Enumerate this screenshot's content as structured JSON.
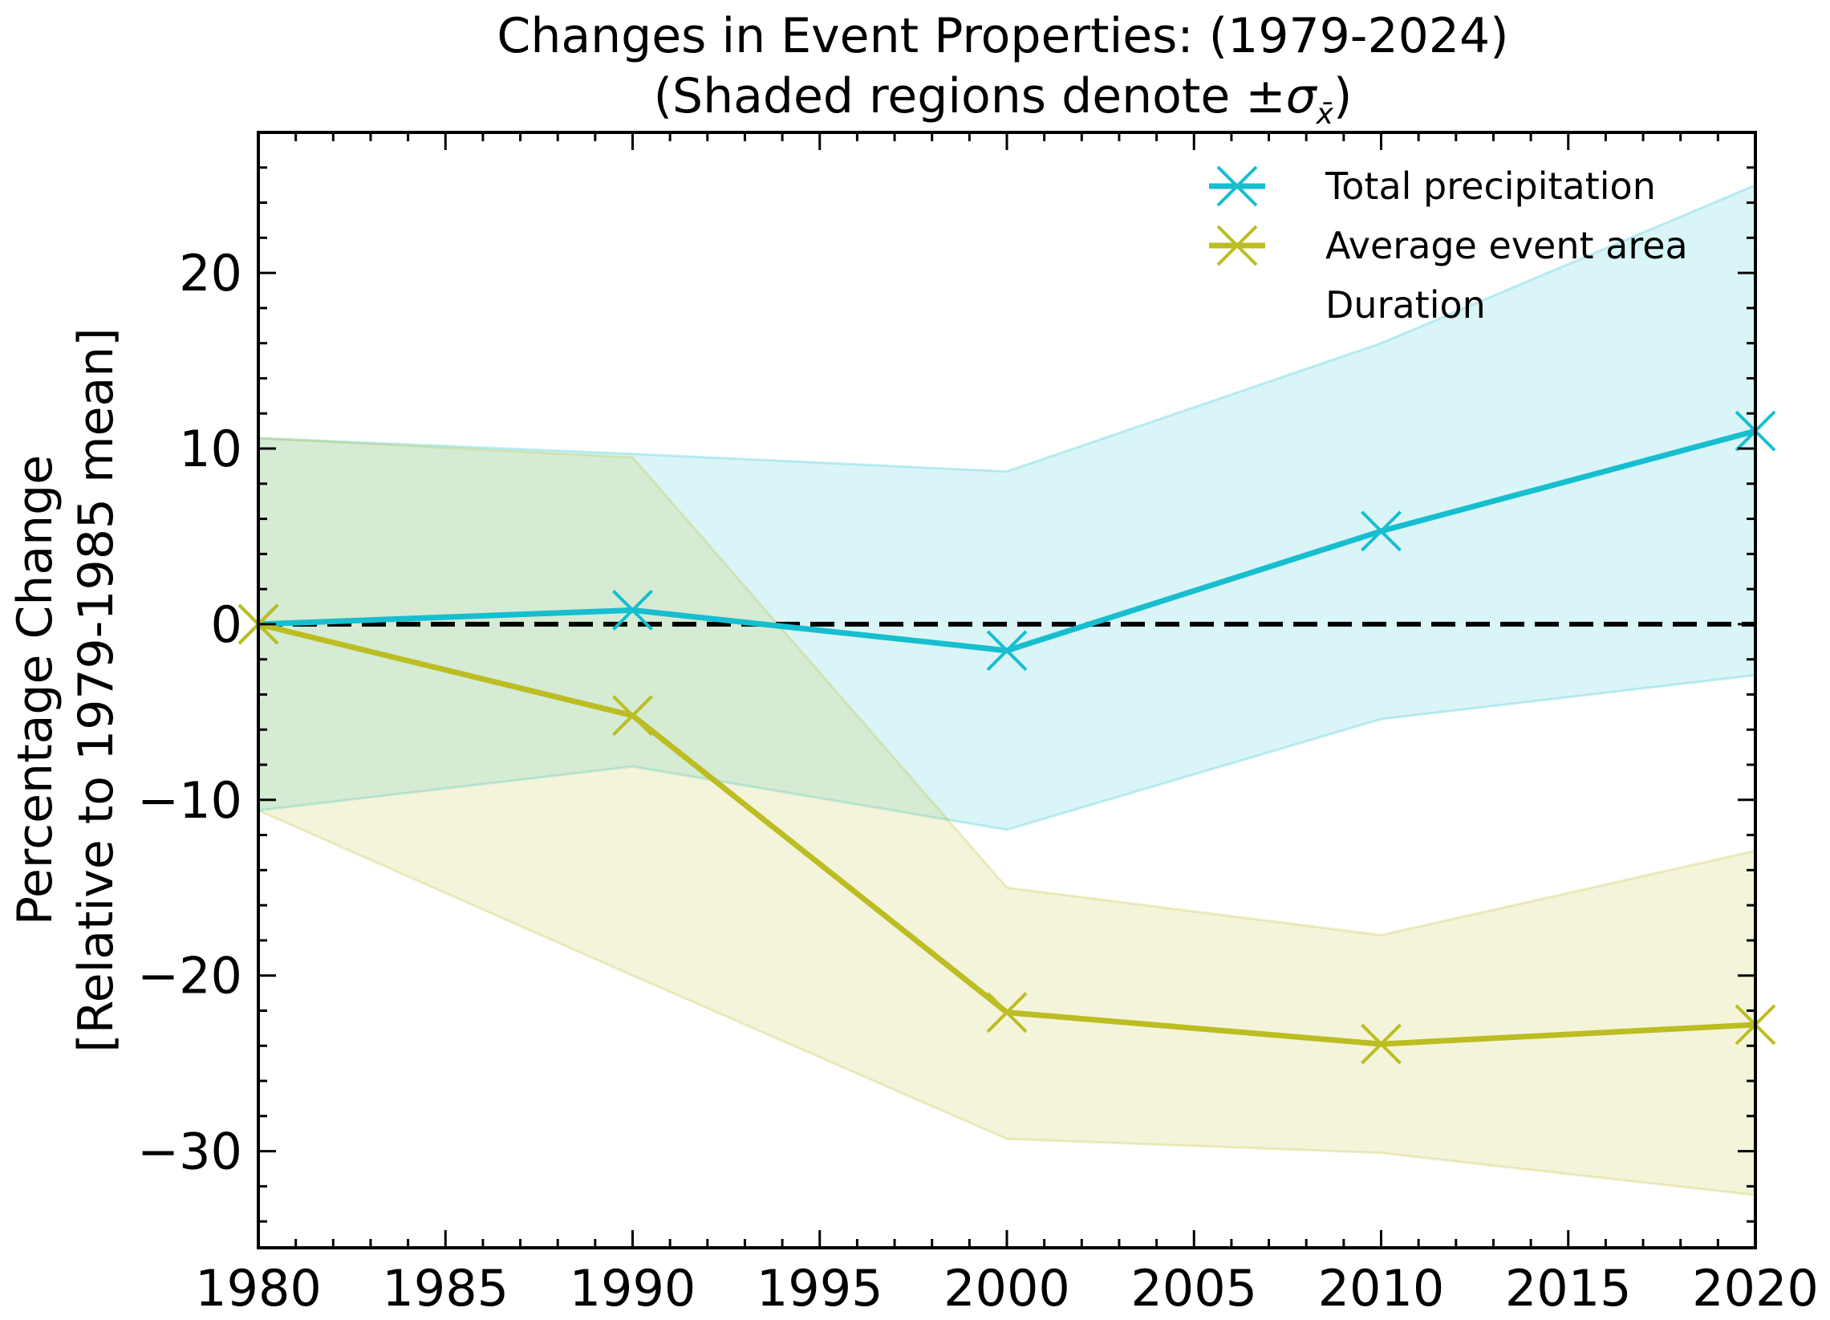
{
  "chart_data": {
    "type": "line",
    "title_line1": "Changes in Event Properties: (1979-2024)",
    "title_line2_prefix": "(Shaded regions denote ±",
    "title_line2_sigma": "σ",
    "title_line2_sub": "x̄",
    "title_line2_suffix": ")",
    "ylabel_line1": "Percentage Change",
    "ylabel_line2": "[Relative to 1979-1985 mean]",
    "xlabel": "",
    "xlim": [
      1980,
      2020
    ],
    "ylim": [
      -35.5,
      28
    ],
    "x_ticks": [
      1980,
      1985,
      1990,
      1995,
      2000,
      2005,
      2010,
      2015,
      2020
    ],
    "y_ticks": [
      -30,
      -20,
      -10,
      0,
      10,
      20
    ],
    "y_tick_labels": [
      "−30",
      "−20",
      "−10",
      "0",
      "10",
      "20"
    ],
    "reference_line": 0,
    "legend_position": "top-right",
    "grid": false,
    "series": [
      {
        "name": "Total precipitation",
        "color": "#17becf",
        "x": [
          1980,
          1990,
          2000,
          2010,
          2020
        ],
        "values": [
          0.0,
          0.8,
          -1.5,
          5.3,
          11.0
        ],
        "band_upper": [
          10.6,
          9.7,
          8.7,
          16.0,
          25.0
        ],
        "band_lower": [
          -10.6,
          -8.1,
          -11.7,
          -5.4,
          -2.9
        ]
      },
      {
        "name": "Average event area",
        "color": "#bcbd22",
        "x": [
          1980,
          1990,
          2000,
          2010,
          2020
        ],
        "values": [
          0.0,
          -5.2,
          -22.1,
          -23.9,
          -22.8
        ],
        "band_upper": [
          10.6,
          9.5,
          -15.0,
          -17.7,
          -12.9
        ],
        "band_lower": [
          -10.6,
          -20.0,
          -29.3,
          -30.1,
          -32.5
        ]
      },
      {
        "name": "Duration",
        "color": "#2ca02c",
        "x": [],
        "values": []
      }
    ]
  }
}
